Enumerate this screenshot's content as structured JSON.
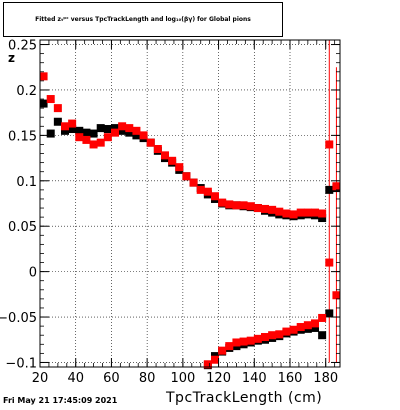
{
  "page": {
    "stamp": "Fri May 21 17:45:09 2021"
  },
  "chart_data": {
    "type": "scatter",
    "title": "Fitted z_{TpcTrackLength} versus TpcTrackLength and log_{10}(βγ) for Global pions",
    "title_display": "Fitted zₜᵖᶜ versus TpcTrackLength and log₁₀(βγ) for Global pions",
    "xlabel": "TpcTrackLength (cm)",
    "ylabel": "z",
    "xlim": [
      20,
      188
    ],
    "ylim": [
      -0.105,
      0.255
    ],
    "grid": true,
    "x_ticks": [
      20,
      40,
      60,
      80,
      100,
      120,
      140,
      160,
      180
    ],
    "y_ticks": [
      -0.1,
      -0.05,
      0,
      0.05,
      0.1,
      0.15,
      0.2,
      0.25
    ],
    "x_tick_labels": [
      "20",
      "40",
      "60",
      "80",
      "100",
      "120",
      "140",
      "160",
      "180"
    ],
    "y_tick_labels": [
      "−0.1",
      "−0.05",
      "0",
      "0.05",
      "0.1",
      "0.15",
      "0.2",
      "0.25"
    ],
    "series": [
      {
        "color": "#000000",
        "upper": {
          "x": [
            22,
            26,
            30,
            34,
            38,
            42,
            46,
            50,
            54,
            58,
            62,
            66,
            70,
            74,
            78,
            82,
            86,
            90,
            94,
            98,
            102,
            106,
            110,
            114,
            118,
            122,
            126,
            130,
            134,
            138,
            142,
            146,
            150,
            154,
            158,
            162,
            166,
            170,
            174,
            178,
            182,
            186
          ],
          "y": [
            0.185,
            0.152,
            0.165,
            0.155,
            0.157,
            0.155,
            0.153,
            0.152,
            0.158,
            0.157,
            0.158,
            0.155,
            0.153,
            0.15,
            0.147,
            0.142,
            0.133,
            0.125,
            0.12,
            0.112,
            0.105,
            0.098,
            0.092,
            0.085,
            0.08,
            0.075,
            0.073,
            0.073,
            0.072,
            0.071,
            0.07,
            0.067,
            0.065,
            0.063,
            0.062,
            0.061,
            0.062,
            0.063,
            0.062,
            0.059,
            0.09,
            0.092
          ]
        },
        "lower": {
          "x": [
            114,
            118,
            122,
            126,
            130,
            134,
            138,
            142,
            146,
            150,
            154,
            158,
            162,
            166,
            170,
            174,
            178,
            182
          ],
          "y": [
            -0.103,
            -0.093,
            -0.088,
            -0.084,
            -0.082,
            -0.08,
            -0.078,
            -0.076,
            -0.075,
            -0.073,
            -0.071,
            -0.068,
            -0.066,
            -0.064,
            -0.063,
            -0.062,
            -0.07,
            -0.046
          ]
        }
      },
      {
        "color": "#ff0000",
        "upper": {
          "x": [
            22,
            26,
            30,
            34,
            38,
            42,
            46,
            50,
            54,
            58,
            62,
            66,
            70,
            74,
            78,
            82,
            86,
            90,
            94,
            98,
            102,
            106,
            110,
            114,
            118,
            122,
            126,
            130,
            134,
            138,
            142,
            146,
            150,
            154,
            158,
            162,
            166,
            170,
            174,
            178,
            182,
            186
          ],
          "y": [
            0.215,
            0.19,
            0.18,
            0.16,
            0.163,
            0.148,
            0.145,
            0.14,
            0.142,
            0.148,
            0.153,
            0.16,
            0.158,
            0.155,
            0.15,
            0.142,
            0.135,
            0.128,
            0.122,
            0.115,
            0.105,
            0.098,
            0.09,
            0.088,
            0.083,
            0.076,
            0.074,
            0.073,
            0.073,
            0.072,
            0.07,
            0.069,
            0.068,
            0.066,
            0.064,
            0.063,
            0.065,
            0.065,
            0.065,
            0.064,
            0.14,
            0.094
          ]
        },
        "lower": {
          "x": [
            114,
            118,
            122,
            126,
            130,
            134,
            138,
            142,
            146,
            150,
            154,
            158,
            162,
            166,
            170,
            174,
            178,
            182,
            186
          ],
          "y": [
            -0.102,
            -0.097,
            -0.087,
            -0.082,
            -0.078,
            -0.077,
            -0.076,
            -0.074,
            -0.072,
            -0.07,
            -0.069,
            -0.066,
            -0.064,
            -0.061,
            -0.059,
            -0.057,
            -0.051,
            0.01,
            -0.026
          ]
        },
        "error_bars": [
          {
            "x": 182,
            "low": -0.1,
            "high": 0.255
          },
          {
            "x": 186,
            "low": -0.1,
            "high": 0.225
          }
        ]
      }
    ]
  }
}
